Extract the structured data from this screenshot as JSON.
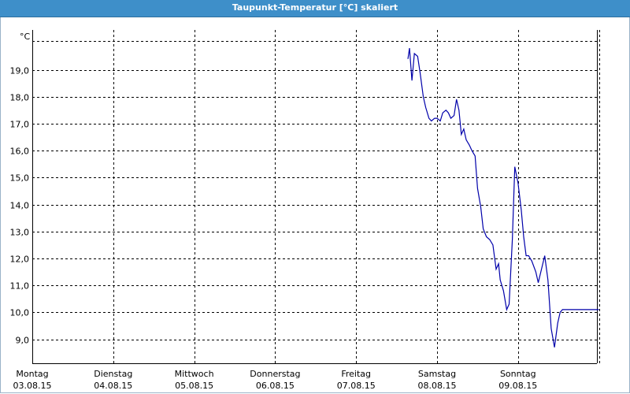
{
  "window": {
    "title": "Taupunkt-Temperatur [°C] skaliert"
  },
  "chart_data": {
    "type": "line",
    "title": "Taupunkt-Temperatur [°C] skaliert",
    "unit_label": "°C",
    "ylim": [
      8.4,
      20.9
    ],
    "y_ticks": [
      "9,0",
      "10,0",
      "11,0",
      "12,0",
      "13,0",
      "14,0",
      "15,0",
      "16,0",
      "17,0",
      "18,0",
      "19,0"
    ],
    "y_tick_values": [
      9,
      10,
      11,
      12,
      13,
      14,
      15,
      16,
      17,
      18,
      19
    ],
    "x_days": [
      {
        "day": "Montag",
        "date": "03.08.15"
      },
      {
        "day": "Dienstag",
        "date": "04.08.15"
      },
      {
        "day": "Mittwoch",
        "date": "05.08.15"
      },
      {
        "day": "Donnerstag",
        "date": "06.08.15"
      },
      {
        "day": "Freitag",
        "date": "07.08.15"
      },
      {
        "day": "Samstag",
        "date": "08.08.15"
      },
      {
        "day": "Sonntag",
        "date": "09.08.15"
      }
    ],
    "x_range_days": [
      0,
      7.15
    ],
    "grid": true,
    "line_color": "#0000aa",
    "series": [
      {
        "x": [
          4.64,
          4.66,
          4.69,
          4.72,
          4.76,
          4.79,
          4.83,
          4.86,
          4.9,
          4.93,
          4.97,
          5.0,
          5.04,
          5.07,
          5.11,
          5.14,
          5.17,
          5.21,
          5.24,
          5.27,
          5.3,
          5.33,
          5.36,
          5.4,
          5.43,
          5.47,
          5.5,
          5.54,
          5.57,
          5.61,
          5.65,
          5.69,
          5.73,
          5.76,
          5.78,
          5.82,
          5.86,
          5.89,
          5.93,
          5.96,
          6.0,
          6.04,
          6.07,
          6.1,
          6.13,
          6.17,
          6.22,
          6.25,
          6.29,
          6.33,
          6.37,
          6.41,
          6.45,
          6.49,
          6.52,
          6.55,
          6.59,
          6.62,
          6.65,
          6.69,
          6.73,
          6.77,
          6.81,
          6.85,
          6.89,
          6.93,
          6.96,
          7.0
        ],
        "y": [
          19.4,
          19.8,
          18.6,
          19.6,
          19.5,
          18.9,
          18.0,
          17.6,
          17.2,
          17.1,
          17.2,
          17.2,
          17.1,
          17.4,
          17.5,
          17.4,
          17.2,
          17.3,
          17.9,
          17.5,
          16.6,
          16.8,
          16.4,
          16.2,
          16.0,
          15.8,
          14.6,
          13.9,
          13.1,
          12.8,
          12.7,
          12.5,
          11.6,
          11.8,
          11.2,
          10.8,
          10.1,
          10.3,
          12.7,
          15.4,
          14.8,
          13.8,
          12.8,
          12.1,
          12.1,
          11.9,
          11.5,
          11.1,
          11.6,
          12.1,
          11.2,
          9.4,
          8.7,
          9.6,
          10.0,
          10.1,
          10.1,
          10.1,
          10.1,
          10.1,
          10.1,
          10.1,
          10.1,
          10.1,
          10.1,
          10.1,
          10.1,
          10.1
        ]
      }
    ]
  }
}
